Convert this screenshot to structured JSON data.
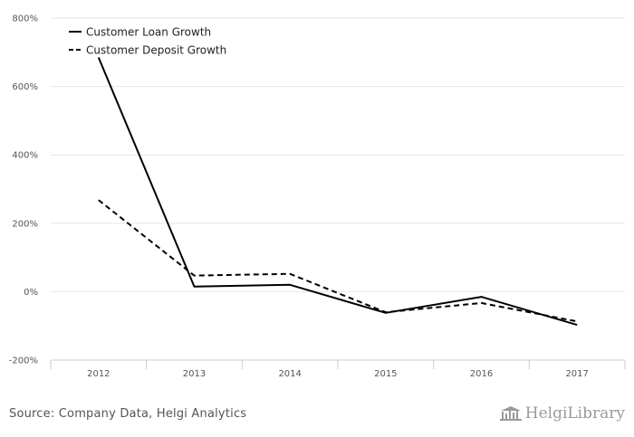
{
  "chart_data": {
    "type": "line",
    "title": "",
    "xlabel": "",
    "ylabel": "",
    "categories": [
      "2012",
      "2013",
      "2014",
      "2015",
      "2016",
      "2017"
    ],
    "ylim": [
      -200,
      800
    ],
    "y_ticks": [
      -200,
      0,
      200,
      400,
      600,
      800
    ],
    "y_tick_suffix": "%",
    "grid": true,
    "legend_placement": "top-left",
    "series": [
      {
        "name": "Customer Loan Growth",
        "style": "solid",
        "color": "#000000",
        "values": [
          685,
          15,
          20,
          -62,
          -15,
          -97
        ]
      },
      {
        "name": "Customer Deposit Growth",
        "style": "dashed",
        "color": "#000000",
        "values": [
          268,
          47,
          52,
          -60,
          -33,
          -87
        ]
      }
    ]
  },
  "footer": {
    "source": "Source: Company Data, Helgi Analytics",
    "logo_text": "HelgiLibrary"
  }
}
